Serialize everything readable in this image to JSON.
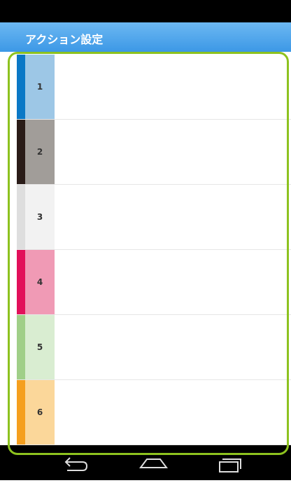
{
  "header": {
    "title": "アクション設定"
  },
  "rows": [
    {
      "label": "1"
    },
    {
      "label": "2"
    },
    {
      "label": "3"
    },
    {
      "label": "4"
    },
    {
      "label": "5"
    },
    {
      "label": "6"
    }
  ]
}
